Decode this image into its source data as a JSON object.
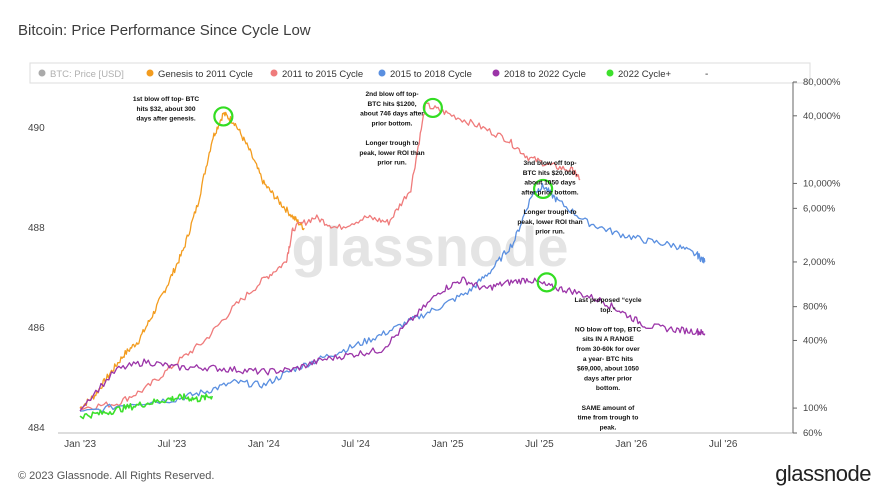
{
  "title": "Bitcoin: Price Performance Since Cycle Low",
  "footer": "© 2023 Glassnode. All Rights Reserved.",
  "brand": "glassnode",
  "watermark": "glassnode",
  "chart_data": {
    "type": "line",
    "x_tick_labels": [
      "Jan '23",
      "Jul '23",
      "Jan '24",
      "Jul '24",
      "Jan '25",
      "Jul '25",
      "Jan '26",
      "Jul '26"
    ],
    "left_axis": {
      "ticks": [
        "484",
        "486",
        "488",
        "490"
      ]
    },
    "right_axis": {
      "scale": "log",
      "ticks": [
        "60%",
        "100%",
        "400%",
        "800%",
        "2,000%",
        "6,000%",
        "10,000%",
        "40,000%",
        "80,000%"
      ]
    },
    "legend_position": "top",
    "legend_extra": "-",
    "grid": false,
    "series": [
      {
        "name": "BTC: Price [USD]",
        "color": "#aaaaaa",
        "values": []
      },
      {
        "name": "Genesis to 2011 Cycle",
        "color": "#f39c1e",
        "values": [
          [
            0.03,
            100
          ],
          [
            0.05,
            130
          ],
          [
            0.07,
            200
          ],
          [
            0.09,
            300
          ],
          [
            0.11,
            400
          ],
          [
            0.13,
            700
          ],
          [
            0.15,
            1300
          ],
          [
            0.17,
            2500
          ],
          [
            0.19,
            6500
          ],
          [
            0.21,
            25000
          ],
          [
            0.225,
            42000
          ],
          [
            0.24,
            35000
          ],
          [
            0.26,
            20000
          ],
          [
            0.28,
            10000
          ],
          [
            0.3,
            7000
          ],
          [
            0.32,
            5000
          ],
          [
            0.335,
            4000
          ]
        ]
      },
      {
        "name": "2011 to 2015 Cycle",
        "color": "#ef7b7b",
        "values": [
          [
            0.03,
            100
          ],
          [
            0.08,
            110
          ],
          [
            0.12,
            150
          ],
          [
            0.16,
            250
          ],
          [
            0.2,
            400
          ],
          [
            0.24,
            800
          ],
          [
            0.28,
            1400
          ],
          [
            0.31,
            2000
          ],
          [
            0.32,
            4000
          ],
          [
            0.35,
            5000
          ],
          [
            0.38,
            4000
          ],
          [
            0.42,
            5000
          ],
          [
            0.45,
            4500
          ],
          [
            0.48,
            9000
          ],
          [
            0.5,
            50000
          ],
          [
            0.53,
            42000
          ],
          [
            0.57,
            33000
          ],
          [
            0.61,
            25000
          ],
          [
            0.64,
            17000
          ],
          [
            0.67,
            14500
          ],
          [
            0.7,
            13000
          ],
          [
            0.71,
            11000
          ]
        ]
      },
      {
        "name": "2015 to 2018 Cycle",
        "color": "#5a8fe0",
        "values": [
          [
            0.03,
            90
          ],
          [
            0.1,
            110
          ],
          [
            0.16,
            120
          ],
          [
            0.2,
            140
          ],
          [
            0.24,
            170
          ],
          [
            0.28,
            160
          ],
          [
            0.32,
            220
          ],
          [
            0.36,
            280
          ],
          [
            0.4,
            350
          ],
          [
            0.44,
            450
          ],
          [
            0.48,
            600
          ],
          [
            0.52,
            800
          ],
          [
            0.56,
            1100
          ],
          [
            0.59,
            1700
          ],
          [
            0.62,
            3000
          ],
          [
            0.645,
            8000
          ],
          [
            0.66,
            9500
          ],
          [
            0.68,
            7000
          ],
          [
            0.72,
            4500
          ],
          [
            0.76,
            3600
          ],
          [
            0.8,
            3100
          ],
          [
            0.84,
            2800
          ],
          [
            0.87,
            2300
          ],
          [
            0.88,
            2000
          ]
        ]
      },
      {
        "name": "2018 to 2022 Cycle",
        "color": "#9b34a8",
        "values": [
          [
            0.03,
            100
          ],
          [
            0.08,
            220
          ],
          [
            0.12,
            260
          ],
          [
            0.16,
            230
          ],
          [
            0.2,
            230
          ],
          [
            0.24,
            220
          ],
          [
            0.28,
            210
          ],
          [
            0.32,
            220
          ],
          [
            0.36,
            270
          ],
          [
            0.4,
            300
          ],
          [
            0.44,
            330
          ],
          [
            0.48,
            600
          ],
          [
            0.52,
            1100
          ],
          [
            0.55,
            1400
          ],
          [
            0.58,
            1150
          ],
          [
            0.61,
            1300
          ],
          [
            0.64,
            1400
          ],
          [
            0.67,
            1200
          ],
          [
            0.7,
            1100
          ],
          [
            0.74,
            900
          ],
          [
            0.77,
            700
          ],
          [
            0.8,
            540
          ],
          [
            0.84,
            500
          ],
          [
            0.87,
            480
          ],
          [
            0.88,
            460
          ]
        ]
      },
      {
        "name": "2022 Cycle+",
        "color": "#3de02c",
        "values": [
          [
            0.03,
            85
          ],
          [
            0.06,
            90
          ],
          [
            0.09,
            100
          ],
          [
            0.12,
            110
          ],
          [
            0.15,
            120
          ],
          [
            0.17,
            125
          ],
          [
            0.19,
            120
          ],
          [
            0.21,
            128
          ]
        ]
      }
    ],
    "annotations": [
      {
        "lines": [
          "1st blow off top- BTC",
          "hits $32, about 300",
          "days after genesis."
        ]
      },
      {
        "lines": [
          "2nd blow off top-",
          "BTC hits $1200,",
          "about 746 days after",
          "prior bottom.",
          "",
          "Longer trough to",
          "peak, lower ROI than",
          "prior run."
        ]
      },
      {
        "lines": [
          "3nd blow off top-",
          "BTC hits $20,000,",
          "about 1050 days",
          "after prior bottom.",
          "",
          "Longer trough to",
          "peak, lower ROI than",
          "prior run."
        ]
      },
      {
        "lines": [
          "Last proposed “cycle",
          "top.”",
          "",
          "NO blow off top, BTC",
          "sits IN A RANGE",
          "from 30-60k for over",
          "a year- BTC hits",
          "$69,000, about 1050",
          "days after prior",
          "bottom.",
          "",
          "SAME amount of",
          "time from trough to",
          "peak."
        ]
      }
    ]
  }
}
